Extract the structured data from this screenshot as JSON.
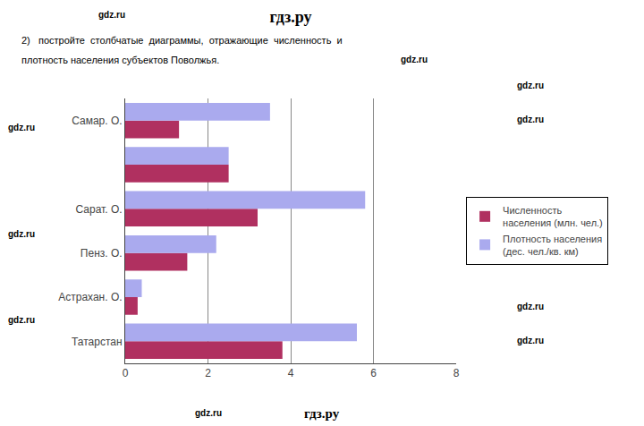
{
  "chart_data": {
    "type": "bar",
    "orientation": "horizontal",
    "title": "гдз.ру",
    "categories": [
      "Татарстан",
      "Астрахан. О.",
      "Пенз. О.",
      "Сарат. О.",
      null,
      "Самар. О."
    ],
    "series": [
      {
        "name": "Численность\nнаселения (млн. чел.)",
        "color": "#b03060",
        "values": [
          3.8,
          0.3,
          1.5,
          3.2,
          2.5,
          1.3
        ]
      },
      {
        "name": "Плотность населения\n(дес. чел./кв. км)",
        "color": "#aaaaee",
        "values": [
          5.6,
          0.4,
          2.2,
          5.8,
          2.5,
          3.5
        ]
      }
    ],
    "xlim": [
      0,
      8
    ],
    "xticks": [
      0,
      2,
      4,
      6,
      8
    ],
    "grid": true,
    "legend": "right",
    "annotations": [
      "2)   постройте  столбчатые  диаграммы,  отражающие  численность  и",
      "плотность населения субъектов Поволжья.",
      "gdz.ru",
      "gdz.ru",
      "gdz.ru",
      "gdz.ru",
      "gdz.ru",
      "gdz.ru",
      "gdz.ru",
      "gdz.ru",
      "gdz.ru",
      "gdz.ru",
      "гдз.ру"
    ]
  }
}
